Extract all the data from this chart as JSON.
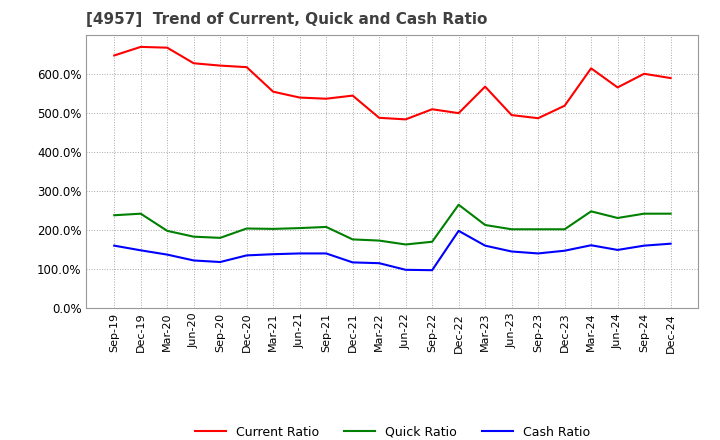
{
  "title": "[4957]  Trend of Current, Quick and Cash Ratio",
  "title_color": "#404040",
  "background_color": "#ffffff",
  "plot_background_color": "#ffffff",
  "grid_color": "#aaaaaa",
  "x_labels": [
    "Sep-19",
    "Dec-19",
    "Mar-20",
    "Jun-20",
    "Sep-20",
    "Dec-20",
    "Mar-21",
    "Jun-21",
    "Sep-21",
    "Dec-21",
    "Mar-22",
    "Jun-22",
    "Sep-22",
    "Dec-22",
    "Mar-23",
    "Jun-23",
    "Sep-23",
    "Dec-23",
    "Mar-24",
    "Jun-24",
    "Sep-24",
    "Dec-24"
  ],
  "current_ratio": [
    648,
    670,
    668,
    628,
    622,
    618,
    555,
    540,
    537,
    545,
    488,
    484,
    510,
    500,
    568,
    495,
    487,
    519,
    615,
    566,
    601,
    590
  ],
  "quick_ratio": [
    238,
    242,
    198,
    183,
    180,
    204,
    203,
    205,
    208,
    176,
    173,
    163,
    170,
    265,
    213,
    202,
    202,
    202,
    248,
    231,
    242,
    242
  ],
  "cash_ratio": [
    160,
    148,
    137,
    122,
    118,
    135,
    138,
    140,
    140,
    117,
    115,
    98,
    97,
    198,
    160,
    145,
    140,
    147,
    161,
    149,
    160,
    165
  ],
  "current_color": "#ff0000",
  "quick_color": "#008000",
  "cash_color": "#0000ff",
  "line_width": 1.5,
  "ylim": [
    0,
    700
  ],
  "yticks": [
    0,
    100,
    200,
    300,
    400,
    500,
    600
  ],
  "legend_labels": [
    "Current Ratio",
    "Quick Ratio",
    "Cash Ratio"
  ]
}
